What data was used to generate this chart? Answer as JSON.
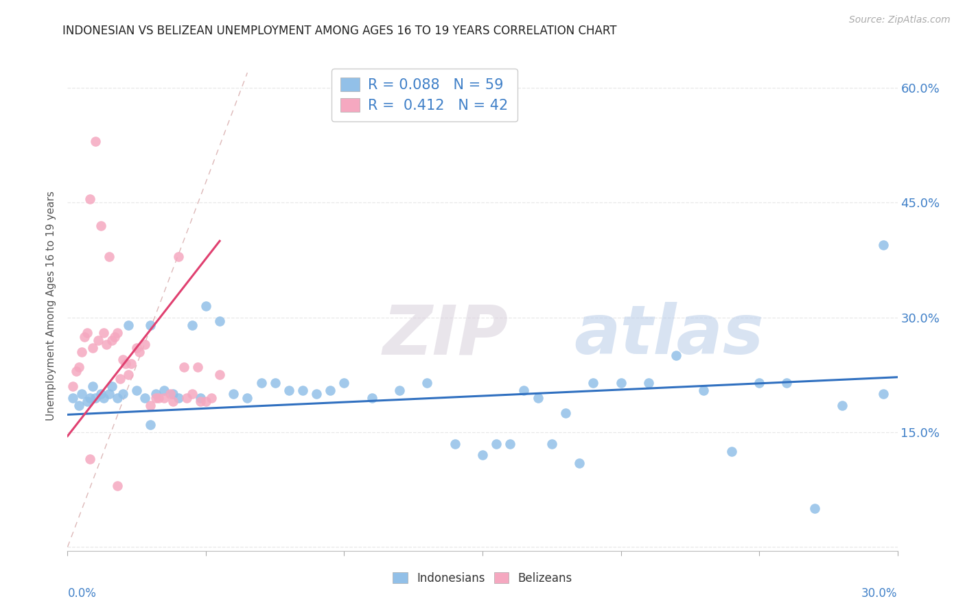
{
  "title": "INDONESIAN VS BELIZEAN UNEMPLOYMENT AMONG AGES 16 TO 19 YEARS CORRELATION CHART",
  "source": "Source: ZipAtlas.com",
  "ylabel": "Unemployment Among Ages 16 to 19 years",
  "xlim": [
    0.0,
    0.3
  ],
  "ylim": [
    -0.005,
    0.635
  ],
  "blue_scatter_color": "#92C0E8",
  "pink_scatter_color": "#F5A8C0",
  "blue_line_color": "#3070C0",
  "pink_line_color": "#E04070",
  "diag_color": "#DDBBBB",
  "right_tick_color": "#4080C8",
  "grid_color": "#E8E8E8",
  "watermark_color": "#C0D8F0",
  "right_ytick_values": [
    0.0,
    0.15,
    0.3,
    0.45,
    0.6
  ],
  "right_ytick_labels": [
    "",
    "15.0%",
    "30.0%",
    "45.0%",
    "60.0%"
  ],
  "ind_x": [
    0.002,
    0.004,
    0.005,
    0.007,
    0.008,
    0.009,
    0.01,
    0.012,
    0.013,
    0.015,
    0.016,
    0.018,
    0.02,
    0.022,
    0.025,
    0.028,
    0.03,
    0.032,
    0.035,
    0.038,
    0.04,
    0.045,
    0.048,
    0.05,
    0.055,
    0.06,
    0.065,
    0.07,
    0.075,
    0.08,
    0.085,
    0.09,
    0.095,
    0.1,
    0.11,
    0.12,
    0.13,
    0.14,
    0.15,
    0.16,
    0.17,
    0.18,
    0.19,
    0.2,
    0.21,
    0.22,
    0.23,
    0.24,
    0.25,
    0.26,
    0.27,
    0.28,
    0.295,
    0.155,
    0.165,
    0.175,
    0.185,
    0.295,
    0.03
  ],
  "ind_y": [
    0.195,
    0.185,
    0.2,
    0.19,
    0.195,
    0.21,
    0.195,
    0.2,
    0.195,
    0.2,
    0.21,
    0.195,
    0.2,
    0.29,
    0.205,
    0.195,
    0.29,
    0.2,
    0.205,
    0.2,
    0.195,
    0.29,
    0.195,
    0.315,
    0.295,
    0.2,
    0.195,
    0.215,
    0.215,
    0.205,
    0.205,
    0.2,
    0.205,
    0.215,
    0.195,
    0.205,
    0.215,
    0.135,
    0.12,
    0.135,
    0.195,
    0.175,
    0.215,
    0.215,
    0.215,
    0.25,
    0.205,
    0.125,
    0.215,
    0.215,
    0.05,
    0.185,
    0.395,
    0.135,
    0.205,
    0.135,
    0.11,
    0.2,
    0.16
  ],
  "bel_x": [
    0.002,
    0.003,
    0.004,
    0.005,
    0.006,
    0.007,
    0.008,
    0.009,
    0.01,
    0.011,
    0.012,
    0.013,
    0.014,
    0.015,
    0.016,
    0.017,
    0.018,
    0.019,
    0.02,
    0.021,
    0.022,
    0.023,
    0.025,
    0.026,
    0.028,
    0.03,
    0.032,
    0.033,
    0.035,
    0.037,
    0.038,
    0.04,
    0.042,
    0.043,
    0.045,
    0.047,
    0.048,
    0.05,
    0.052,
    0.055,
    0.008,
    0.018
  ],
  "bel_y": [
    0.21,
    0.23,
    0.235,
    0.255,
    0.275,
    0.28,
    0.455,
    0.26,
    0.53,
    0.27,
    0.42,
    0.28,
    0.265,
    0.38,
    0.27,
    0.275,
    0.28,
    0.22,
    0.245,
    0.24,
    0.225,
    0.24,
    0.26,
    0.255,
    0.265,
    0.185,
    0.195,
    0.195,
    0.195,
    0.2,
    0.19,
    0.38,
    0.235,
    0.195,
    0.2,
    0.235,
    0.19,
    0.19,
    0.195,
    0.225,
    0.115,
    0.08
  ],
  "legend_blue": "R = 0.088   N = 59",
  "legend_pink": "R =  0.412   N = 42",
  "bottom_labels": [
    "Indonesians",
    "Belizeans"
  ],
  "watermark": "ZIPatlas"
}
